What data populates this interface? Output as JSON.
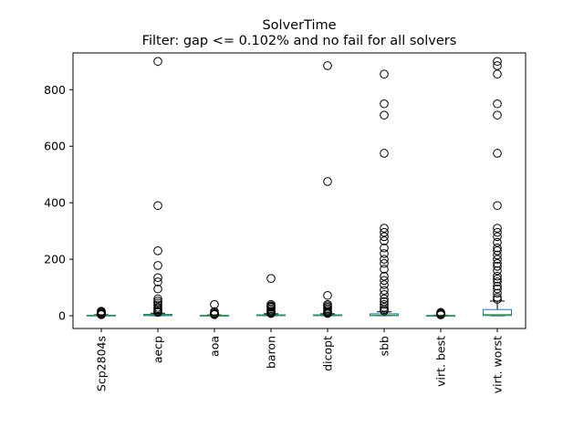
{
  "chart_data": {
    "type": "box",
    "title": "SolverTime",
    "subtitle": "Filter: gap <= 0.102% and no fail for all solvers",
    "xlabel": "",
    "ylabel": "",
    "ylim": [
      -45,
      930
    ],
    "y_ticks": [
      0,
      200,
      400,
      600,
      800
    ],
    "grid": false,
    "colors": {
      "box": "#1f77b4",
      "median": "#2ca02c",
      "whisker": "#000000",
      "flier": "#000000"
    },
    "categories": [
      "Scp2804s",
      "aecp",
      "aoa",
      "baron",
      "dicopt",
      "sbb",
      "virt. best",
      "virt. worst"
    ],
    "boxes": [
      {
        "q1": 0.3,
        "median": 0.8,
        "q3": 1.8,
        "whisker_low": 0.1,
        "whisker_high": 3.5,
        "outliers": [
          5,
          7,
          9,
          12,
          15,
          16,
          3.8,
          4.5
        ]
      },
      {
        "q1": 0.5,
        "median": 2,
        "q3": 5,
        "whisker_low": 0.1,
        "whisker_high": 9,
        "outliers": [
          900,
          390,
          230,
          178,
          135,
          120,
          95,
          60,
          52,
          45,
          38,
          30,
          25,
          20,
          15,
          12
        ]
      },
      {
        "q1": 0.2,
        "median": 0.6,
        "q3": 1.5,
        "whisker_low": 0.1,
        "whisker_high": 3,
        "outliers": [
          40,
          15,
          10,
          8,
          6,
          5,
          4
        ]
      },
      {
        "q1": 0.4,
        "median": 1.2,
        "q3": 3.5,
        "whisker_low": 0.1,
        "whisker_high": 7,
        "outliers": [
          132,
          40,
          35,
          32,
          30,
          25,
          20,
          15,
          12,
          10,
          8
        ]
      },
      {
        "q1": 0.4,
        "median": 1.2,
        "q3": 3.5,
        "whisker_low": 0.1,
        "whisker_high": 7,
        "outliers": [
          885,
          475,
          72,
          40,
          35,
          30,
          25,
          20,
          15,
          12,
          10,
          8
        ]
      },
      {
        "q1": 0.5,
        "median": 2,
        "q3": 7,
        "whisker_low": 0.1,
        "whisker_high": 14,
        "outliers": [
          855,
          750,
          710,
          575,
          310,
          295,
          280,
          265,
          240,
          220,
          200,
          185,
          165,
          140,
          125,
          110,
          90,
          75,
          60,
          50,
          40,
          30,
          22,
          17
        ]
      },
      {
        "q1": 0.1,
        "median": 0.4,
        "q3": 1,
        "whisker_low": 0.05,
        "whisker_high": 2.2,
        "outliers": [
          3,
          5,
          8,
          10,
          12
        ]
      },
      {
        "q1": 1,
        "median": 4,
        "q3": 22,
        "whisker_low": 0.1,
        "whisker_high": 52,
        "outliers": [
          900,
          885,
          855,
          750,
          710,
          575,
          390,
          310,
          295,
          280,
          260,
          240,
          230,
          215,
          200,
          185,
          175,
          160,
          140,
          130,
          120,
          105,
          95,
          80,
          65,
          58
        ]
      }
    ]
  }
}
